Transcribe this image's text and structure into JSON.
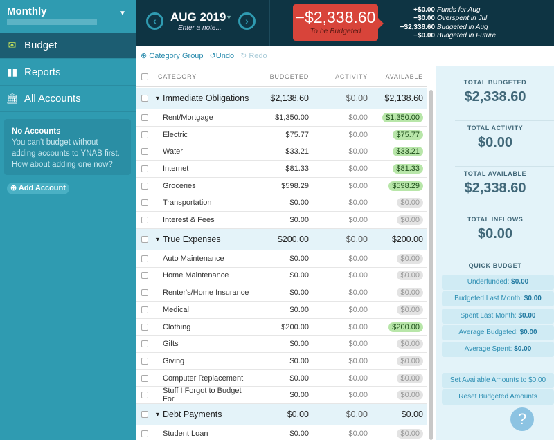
{
  "sidebar": {
    "budget_name": "Monthly",
    "nav": [
      {
        "label": "Budget",
        "icon": "envelope-icon"
      },
      {
        "label": "Reports",
        "icon": "bar-chart-icon"
      },
      {
        "label": "All Accounts",
        "icon": "bank-icon"
      }
    ],
    "no_accounts_title": "No Accounts",
    "no_accounts_text": "You can't budget without adding accounts to YNAB first. How about adding one now?",
    "add_account": "Add Account"
  },
  "header": {
    "month": "AUG 2019",
    "note_placeholder": "Enter a note...",
    "to_be_budgeted": "−$2,338.60",
    "to_be_budgeted_label": "To be Budgeted",
    "summary": [
      {
        "value": "+$0.00",
        "label": "Funds for Aug"
      },
      {
        "value": "−$0.00",
        "label": "Overspent in Jul"
      },
      {
        "value": "−$2,338.60",
        "label": "Budgeted in Aug"
      },
      {
        "value": "−$0.00",
        "label": "Budgeted in Future"
      }
    ]
  },
  "toolbar": {
    "category_group": "Category Group",
    "undo": "Undo",
    "redo": "Redo"
  },
  "table": {
    "columns": [
      "CATEGORY",
      "BUDGETED",
      "ACTIVITY",
      "AVAILABLE"
    ],
    "rows": [
      {
        "type": "group",
        "name": "Immediate Obligations",
        "budgeted": "$2,138.60",
        "activity": "$0.00",
        "available": "$2,138.60"
      },
      {
        "type": "cat",
        "name": "Rent/Mortgage",
        "budgeted": "$1,350.00",
        "activity": "$0.00",
        "available": "$1,350.00",
        "positive": true
      },
      {
        "type": "cat",
        "name": "Electric",
        "budgeted": "$75.77",
        "activity": "$0.00",
        "available": "$75.77",
        "positive": true
      },
      {
        "type": "cat",
        "name": "Water",
        "budgeted": "$33.21",
        "activity": "$0.00",
        "available": "$33.21",
        "positive": true
      },
      {
        "type": "cat",
        "name": "Internet",
        "budgeted": "$81.33",
        "activity": "$0.00",
        "available": "$81.33",
        "positive": true
      },
      {
        "type": "cat",
        "name": "Groceries",
        "budgeted": "$598.29",
        "activity": "$0.00",
        "available": "$598.29",
        "positive": true
      },
      {
        "type": "cat",
        "name": "Transportation",
        "budgeted": "$0.00",
        "activity": "$0.00",
        "available": "$0.00"
      },
      {
        "type": "cat",
        "name": "Interest & Fees",
        "budgeted": "$0.00",
        "activity": "$0.00",
        "available": "$0.00"
      },
      {
        "type": "group",
        "name": "True Expenses",
        "budgeted": "$200.00",
        "activity": "$0.00",
        "available": "$200.00"
      },
      {
        "type": "cat",
        "name": "Auto Maintenance",
        "budgeted": "$0.00",
        "activity": "$0.00",
        "available": "$0.00"
      },
      {
        "type": "cat",
        "name": "Home Maintenance",
        "budgeted": "$0.00",
        "activity": "$0.00",
        "available": "$0.00"
      },
      {
        "type": "cat",
        "name": "Renter's/Home Insurance",
        "budgeted": "$0.00",
        "activity": "$0.00",
        "available": "$0.00"
      },
      {
        "type": "cat",
        "name": "Medical",
        "budgeted": "$0.00",
        "activity": "$0.00",
        "available": "$0.00"
      },
      {
        "type": "cat",
        "name": "Clothing",
        "budgeted": "$200.00",
        "activity": "$0.00",
        "available": "$200.00",
        "positive": true
      },
      {
        "type": "cat",
        "name": "Gifts",
        "budgeted": "$0.00",
        "activity": "$0.00",
        "available": "$0.00"
      },
      {
        "type": "cat",
        "name": "Giving",
        "budgeted": "$0.00",
        "activity": "$0.00",
        "available": "$0.00"
      },
      {
        "type": "cat",
        "name": "Computer Replacement",
        "budgeted": "$0.00",
        "activity": "$0.00",
        "available": "$0.00"
      },
      {
        "type": "cat",
        "name": "Stuff I Forgot to Budget For",
        "budgeted": "$0.00",
        "activity": "$0.00",
        "available": "$0.00"
      },
      {
        "type": "group",
        "name": "Debt Payments",
        "budgeted": "$0.00",
        "activity": "$0.00",
        "available": "$0.00"
      },
      {
        "type": "cat",
        "name": "Student Loan",
        "budgeted": "$0.00",
        "activity": "$0.00",
        "available": "$0.00"
      }
    ]
  },
  "panel": {
    "stats": [
      {
        "label": "TOTAL BUDGETED",
        "value": "$2,338.60"
      },
      {
        "label": "TOTAL ACTIVITY",
        "value": "$0.00"
      },
      {
        "label": "TOTAL AVAILABLE",
        "value": "$2,338.60"
      },
      {
        "label": "TOTAL INFLOWS",
        "value": "$0.00"
      }
    ],
    "quick_budget_title": "QUICK BUDGET",
    "quick": [
      {
        "label": "Underfunded: ",
        "value": "$0.00"
      },
      {
        "label": "Budgeted Last Month: ",
        "value": "$0.00"
      },
      {
        "label": "Spent Last Month: ",
        "value": "$0.00"
      },
      {
        "label": "Average Budgeted: ",
        "value": "$0.00"
      },
      {
        "label": "Average Spent: ",
        "value": "$0.00"
      }
    ],
    "actions": [
      "Set Available Amounts to $0.00",
      "Reset Budgeted Amounts"
    ],
    "help": "?"
  },
  "colors": {
    "sidebar": "#2f9bb1",
    "header": "#0e3443",
    "to_be_budgeted": "#d8443a",
    "positive_pill": "#b8e6a9"
  }
}
